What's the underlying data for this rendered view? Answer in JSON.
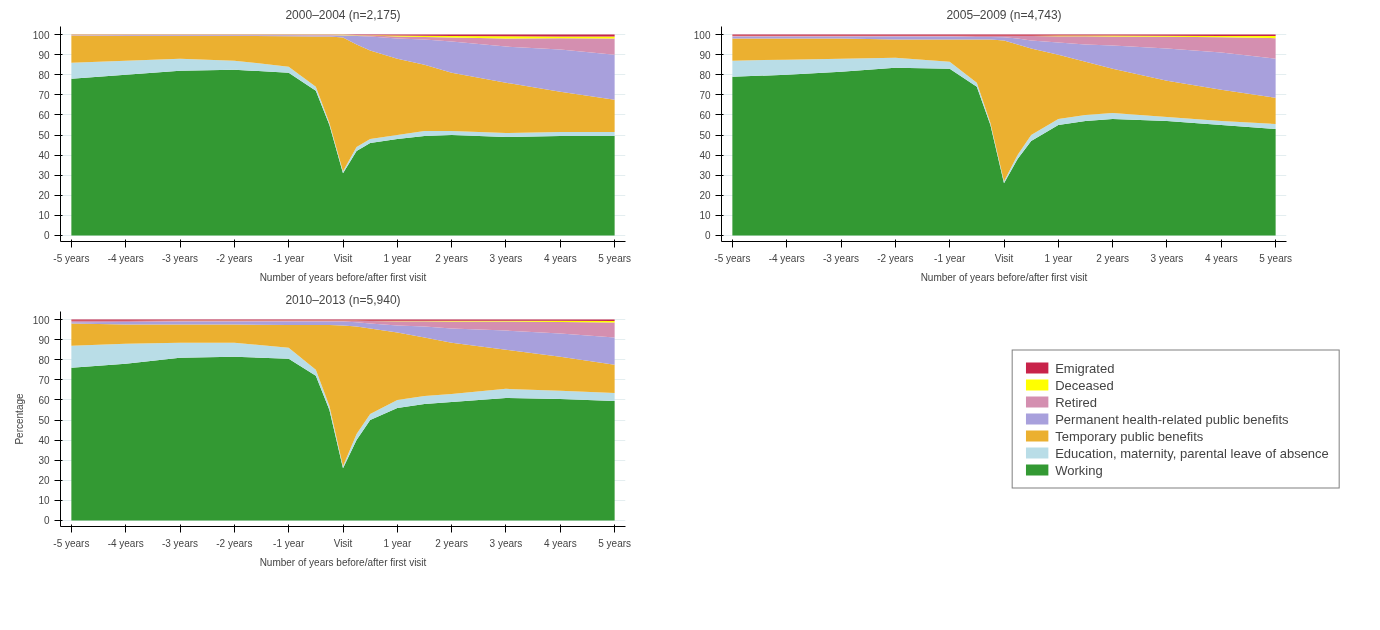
{
  "chart_data": [
    {
      "type": "area",
      "title": "2000–2004 (n=2,175)",
      "xlabel": "Number of years before/after first visit",
      "stacked": true,
      "grid": "y",
      "x": [
        -5,
        -4,
        -3,
        -2,
        -1,
        -0.5,
        -0.25,
        0,
        0.25,
        0.5,
        1,
        1.5,
        2,
        3,
        4,
        5
      ],
      "xlim": [
        -5.2,
        5.2
      ],
      "ylim": [
        -3,
        104
      ],
      "xticks": [
        {
          "value": -5,
          "label": "-5 years"
        },
        {
          "value": -4,
          "label": "-4 years"
        },
        {
          "value": -3,
          "label": "-3 years"
        },
        {
          "value": -2,
          "label": "-2 years"
        },
        {
          "value": -1,
          "label": "-1 year"
        },
        {
          "value": 0,
          "label": "Visit"
        },
        {
          "value": 1,
          "label": "1 year"
        },
        {
          "value": 2,
          "label": "2 years"
        },
        {
          "value": 3,
          "label": "3 years"
        },
        {
          "value": 4,
          "label": "4 years"
        },
        {
          "value": 5,
          "label": "5 years"
        }
      ],
      "yticks": [
        0,
        10,
        20,
        30,
        40,
        50,
        60,
        70,
        80,
        90,
        100
      ],
      "series": [
        {
          "color": "#339933",
          "values": [
            78,
            80,
            82,
            82.5,
            81,
            72,
            55,
            31,
            42,
            46,
            48,
            49.5,
            50,
            49,
            49.5,
            49.5
          ]
        },
        {
          "color": "#b9dde7",
          "values": [
            8,
            7,
            6,
            4.5,
            3,
            2,
            1,
            1,
            2,
            2,
            2,
            2.5,
            2,
            2,
            2,
            2
          ]
        },
        {
          "color": "#ebb030",
          "values": [
            13.5,
            12.3,
            11.3,
            12.3,
            15.2,
            25,
            43,
            66.5,
            51,
            44,
            38,
            33,
            29,
            25,
            20,
            16
          ]
        },
        {
          "color": "#a8a0dc",
          "values": [
            0.2,
            0.3,
            0.3,
            0.3,
            0.4,
            0.5,
            0.5,
            1,
            4.3,
            7,
            10,
            12.5,
            15.5,
            18,
            21,
            22.5
          ]
        },
        {
          "color": "#d48fb0",
          "values": [
            0.1,
            0.2,
            0.2,
            0.2,
            0.2,
            0.3,
            0.3,
            0.2,
            0.3,
            0.5,
            1,
            1.3,
            2,
            4,
            5.7,
            8
          ]
        },
        {
          "color": "#ffff00",
          "values": [
            0.1,
            0.1,
            0.1,
            0.1,
            0.1,
            0.1,
            0.1,
            0.2,
            0.2,
            0.2,
            0.5,
            0.6,
            0.8,
            1.2,
            0.8,
            1
          ]
        },
        {
          "color": "#c8234a",
          "values": [
            0.1,
            0.1,
            0.1,
            0.1,
            0.1,
            0.1,
            0.1,
            0.1,
            0.2,
            0.3,
            0.5,
            0.6,
            0.7,
            0.8,
            1,
            1
          ]
        }
      ]
    },
    {
      "type": "area",
      "title": "2005–2009 (n=4,743)",
      "xlabel": "Number of years before/after first visit",
      "stacked": true,
      "grid": "y",
      "x": [
        -5,
        -4,
        -3,
        -2,
        -1,
        -0.5,
        -0.25,
        0,
        0.25,
        0.5,
        1,
        1.5,
        2,
        3,
        4,
        5
      ],
      "xlim": [
        -5.2,
        5.2
      ],
      "ylim": [
        -3,
        104
      ],
      "xticks": [
        {
          "value": -5,
          "label": "-5 years"
        },
        {
          "value": -4,
          "label": "-4 years"
        },
        {
          "value": -3,
          "label": "-3 years"
        },
        {
          "value": -2,
          "label": "-2 years"
        },
        {
          "value": -1,
          "label": "-1 year"
        },
        {
          "value": 0,
          "label": "Visit"
        },
        {
          "value": 1,
          "label": "1 year"
        },
        {
          "value": 2,
          "label": "2 years"
        },
        {
          "value": 3,
          "label": "3 years"
        },
        {
          "value": 4,
          "label": "4 years"
        },
        {
          "value": 5,
          "label": "5 years"
        }
      ],
      "yticks": [
        0,
        10,
        20,
        30,
        40,
        50,
        60,
        70,
        80,
        90,
        100
      ],
      "series": [
        {
          "color": "#339933",
          "values": [
            79,
            80,
            81.5,
            83.5,
            83,
            74,
            55,
            26,
            38,
            47,
            55,
            57,
            58,
            57,
            55,
            53
          ]
        },
        {
          "color": "#b9dde7",
          "values": [
            8,
            7.5,
            6.5,
            5,
            3.5,
            2,
            1,
            1,
            2,
            3,
            3,
            3,
            3,
            2,
            2,
            2.5
          ]
        },
        {
          "color": "#ebb030",
          "values": [
            11,
            10.5,
            10,
            9,
            11,
            21.5,
            41.5,
            70,
            55,
            43,
            32,
            26.5,
            22,
            18,
            15.5,
            13
          ]
        },
        {
          "color": "#a8a0dc",
          "values": [
            1,
            1,
            1,
            1.5,
            1.5,
            1.3,
            1.3,
            1.7,
            3,
            4,
            6,
            8.5,
            11.5,
            16,
            18.5,
            19.5
          ]
        },
        {
          "color": "#d48fb0",
          "values": [
            0.3,
            0.3,
            0.3,
            0.3,
            0.3,
            0.5,
            0.5,
            0.6,
            1.3,
            2.3,
            3.2,
            4.1,
            4.5,
            5.9,
            7.7,
            10.2
          ]
        },
        {
          "color": "#ffff00",
          "values": [
            0.1,
            0.1,
            0.1,
            0.1,
            0.1,
            0.1,
            0.1,
            0.1,
            0.1,
            0.1,
            0.3,
            0.4,
            0.5,
            0.5,
            0.6,
            1.1
          ]
        },
        {
          "color": "#c8234a",
          "values": [
            0.6,
            0.6,
            0.6,
            0.6,
            0.6,
            0.6,
            0.6,
            0.6,
            0.6,
            0.6,
            0.5,
            0.5,
            0.5,
            0.6,
            0.7,
            0.7
          ]
        }
      ]
    },
    {
      "type": "area",
      "title": "2010–2013 (n=5,940)",
      "xlabel": "Number of years before/after first visit",
      "ylabel": "Percentage",
      "stacked": true,
      "grid": "y",
      "legend": "right",
      "x": [
        -5,
        -4,
        -3,
        -2,
        -1,
        -0.5,
        -0.25,
        0,
        0.25,
        0.5,
        1,
        1.5,
        2,
        3,
        4,
        5
      ],
      "xlim": [
        -5.2,
        5.2
      ],
      "ylim": [
        -3,
        104
      ],
      "xticks": [
        {
          "value": -5,
          "label": "-5 years"
        },
        {
          "value": -4,
          "label": "-4 years"
        },
        {
          "value": -3,
          "label": "-3 years"
        },
        {
          "value": -2,
          "label": "-2 years"
        },
        {
          "value": -1,
          "label": "-1 year"
        },
        {
          "value": 0,
          "label": "Visit"
        },
        {
          "value": 1,
          "label": "1 year"
        },
        {
          "value": 2,
          "label": "2 years"
        },
        {
          "value": 3,
          "label": "3 years"
        },
        {
          "value": 4,
          "label": "4 years"
        },
        {
          "value": 5,
          "label": "5 years"
        }
      ],
      "yticks": [
        0,
        10,
        20,
        30,
        40,
        50,
        60,
        70,
        80,
        90,
        100
      ],
      "series": [
        {
          "name": "Working",
          "color": "#339933",
          "values": [
            76,
            78,
            81,
            81.5,
            80.5,
            72,
            55,
            26,
            40,
            50,
            56,
            58,
            59,
            61,
            60.5,
            59.5
          ]
        },
        {
          "name": "Education, maternity, parental leave of absence",
          "color": "#b9dde7",
          "values": [
            11,
            10,
            7.5,
            7,
            5.5,
            3,
            2,
            1,
            3,
            3,
            4,
            4,
            4,
            4.5,
            4,
            4
          ]
        },
        {
          "name": "Temporary public benefits",
          "color": "#ebb030",
          "values": [
            11,
            9.5,
            9,
            9,
            11.3,
            22.3,
            40.3,
            70,
            53.5,
            42.5,
            33.5,
            29,
            25.5,
            19.5,
            17,
            14
          ]
        },
        {
          "name": "Permanent health-related public benefits",
          "color": "#a8a0dc",
          "values": [
            0.7,
            1.3,
            1.5,
            1.5,
            1.7,
            1.7,
            1.7,
            2,
            2.2,
            2.5,
            3.5,
            5.5,
            7,
            9.5,
            11.5,
            13.5
          ]
        },
        {
          "name": "Retired",
          "color": "#d48fb0",
          "values": [
            0.6,
            0.5,
            0.4,
            0.4,
            0.4,
            0.4,
            0.4,
            0.4,
            0.7,
            1.3,
            2.2,
            2.6,
            3.5,
            4.5,
            5.8,
            7.5
          ]
        },
        {
          "name": "Deceased",
          "color": "#ffff00",
          "values": [
            0.1,
            0.1,
            0.1,
            0.1,
            0.1,
            0.1,
            0.1,
            0.1,
            0.1,
            0.1,
            0.2,
            0.3,
            0.4,
            0.4,
            0.6,
            0.8
          ]
        },
        {
          "name": "Emigrated",
          "color": "#c8234a",
          "values": [
            0.6,
            0.6,
            0.5,
            0.5,
            0.5,
            0.5,
            0.5,
            0.5,
            0.5,
            0.6,
            0.6,
            0.6,
            0.6,
            0.6,
            0.6,
            0.7
          ]
        }
      ]
    }
  ]
}
